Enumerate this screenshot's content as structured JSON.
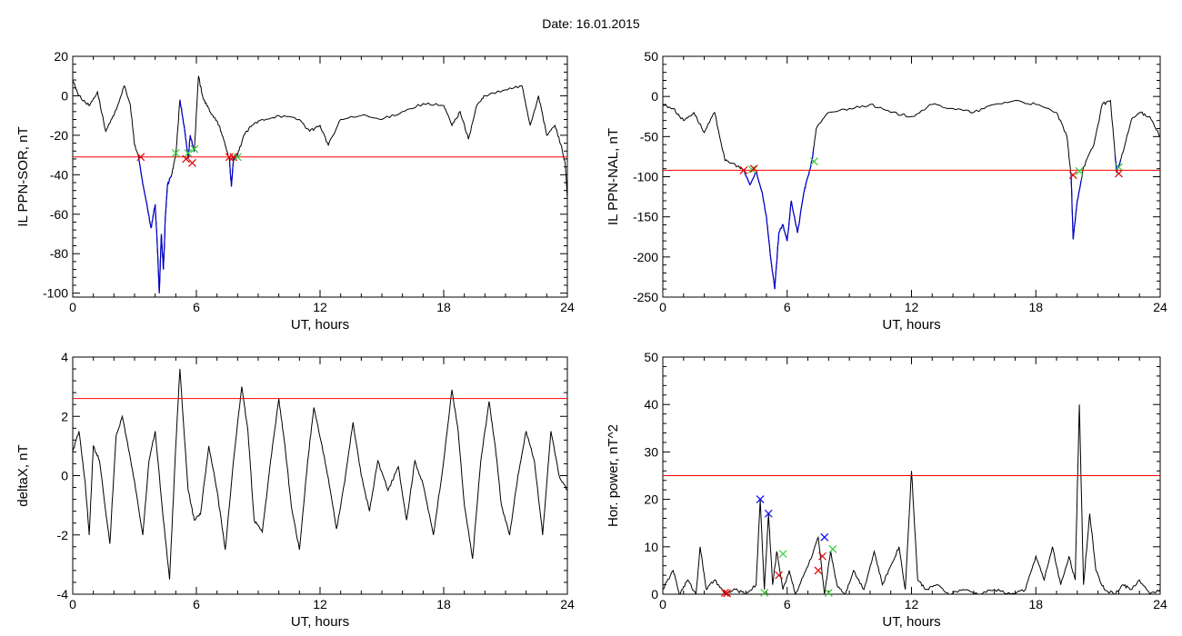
{
  "figure_title": "Date:  16.01.2015",
  "colors": {
    "line": "#000000",
    "threshold": "#ff0000",
    "highlight": "#0000cc",
    "green_marker": "#33cc33",
    "red_marker": "#dd0000",
    "blue_marker": "#0000ff"
  },
  "chart_data": [
    {
      "type": "line",
      "id": "sor",
      "ylabel": "IL PPN-SOR, nT",
      "xlabel": "UT, hours",
      "xlim": [
        0,
        24
      ],
      "ylim": [
        -102,
        20
      ],
      "xticks": [
        0,
        6,
        12,
        18,
        24
      ],
      "yticks": [
        20,
        0,
        -20,
        -40,
        -60,
        -80,
        -100
      ],
      "threshold": -31,
      "x": [
        0,
        0.3,
        0.8,
        1.2,
        1.6,
        2.0,
        2.5,
        2.8,
        3.0,
        3.2,
        3.4,
        3.6,
        3.8,
        4.0,
        4.1,
        4.2,
        4.3,
        4.4,
        4.5,
        4.6,
        4.8,
        5.0,
        5.2,
        5.4,
        5.6,
        5.7,
        5.9,
        6.1,
        6.3,
        6.5,
        6.8,
        7.1,
        7.4,
        7.6,
        7.7,
        7.8,
        8.0,
        8.3,
        8.7,
        9.2,
        10,
        11,
        11.5,
        12,
        12.4,
        13,
        14,
        15,
        16,
        17,
        18,
        18.4,
        18.8,
        19.2,
        19.6,
        20,
        21,
        21.8,
        22.2,
        22.6,
        23,
        23.4,
        23.7,
        23.9,
        24
      ],
      "y": [
        8,
        0,
        -5,
        2,
        -18,
        -10,
        5,
        -5,
        -25,
        -31,
        -45,
        -55,
        -67,
        -55,
        -75,
        -100,
        -70,
        -88,
        -60,
        -45,
        -40,
        -30,
        -2,
        -15,
        -32,
        -20,
        -28,
        10,
        0,
        -5,
        -10,
        -15,
        -25,
        -32,
        -46,
        -32,
        -30,
        -20,
        -15,
        -12,
        -10,
        -12,
        -18,
        -15,
        -25,
        -12,
        -10,
        -12,
        -8,
        -4,
        -5,
        -15,
        -8,
        -22,
        -5,
        0,
        3,
        5,
        -15,
        0,
        -20,
        -15,
        -25,
        -35,
        -52
      ],
      "highlight_ranges": [
        [
          3.2,
          4.8
        ],
        [
          5.2,
          5.9
        ],
        [
          7.6,
          8.0
        ]
      ],
      "markers": [
        {
          "x": 3.3,
          "y": -31,
          "color": "red"
        },
        {
          "x": 5.0,
          "y": -29,
          "color": "green"
        },
        {
          "x": 5.5,
          "y": -32,
          "color": "red"
        },
        {
          "x": 5.6,
          "y": -29,
          "color": "green"
        },
        {
          "x": 5.8,
          "y": -34,
          "color": "red"
        },
        {
          "x": 5.9,
          "y": -27,
          "color": "green"
        },
        {
          "x": 7.6,
          "y": -31,
          "color": "red"
        },
        {
          "x": 7.8,
          "y": -31,
          "color": "red"
        },
        {
          "x": 8.0,
          "y": -31,
          "color": "green"
        }
      ]
    },
    {
      "type": "line",
      "id": "nal",
      "ylabel": "IL PPN-NAL, nT",
      "xlabel": "UT, hours",
      "xlim": [
        0,
        24
      ],
      "ylim": [
        -250,
        50
      ],
      "xticks": [
        0,
        6,
        12,
        18,
        24
      ],
      "yticks": [
        50,
        0,
        -50,
        -100,
        -150,
        -200,
        -250
      ],
      "threshold": -92,
      "x": [
        0,
        0.5,
        1.0,
        1.5,
        2.0,
        2.5,
        3.0,
        3.5,
        3.9,
        4.2,
        4.5,
        4.8,
        5.0,
        5.2,
        5.4,
        5.6,
        5.8,
        6.0,
        6.2,
        6.5,
        6.8,
        7.0,
        7.2,
        7.4,
        8.0,
        9.0,
        10,
        11,
        12,
        13,
        14,
        15,
        16,
        17,
        18,
        19,
        19.5,
        19.7,
        19.8,
        20.0,
        20.3,
        20.8,
        21.2,
        21.6,
        21.9,
        22.2,
        22.6,
        23,
        23.5,
        24
      ],
      "y": [
        -10,
        -15,
        -30,
        -20,
        -45,
        -20,
        -80,
        -85,
        -92,
        -110,
        -95,
        -120,
        -150,
        -200,
        -240,
        -170,
        -160,
        -180,
        -130,
        -170,
        -120,
        -100,
        -80,
        -40,
        -20,
        -15,
        -10,
        -20,
        -25,
        -10,
        -15,
        -20,
        -10,
        -5,
        -10,
        -20,
        -50,
        -98,
        -178,
        -130,
        -88,
        -60,
        -10,
        -5,
        -95,
        -70,
        -30,
        -20,
        -25,
        -50
      ],
      "highlight_ranges": [
        [
          3.9,
          7.3
        ],
        [
          19.7,
          20.2
        ],
        [
          21.8,
          22.1
        ]
      ],
      "markers": [
        {
          "x": 3.9,
          "y": -92,
          "color": "red"
        },
        {
          "x": 4.3,
          "y": -91,
          "color": "green"
        },
        {
          "x": 4.4,
          "y": -90,
          "color": "red"
        },
        {
          "x": 7.3,
          "y": -81,
          "color": "green"
        },
        {
          "x": 19.8,
          "y": -98,
          "color": "red"
        },
        {
          "x": 20.1,
          "y": -93,
          "color": "green"
        },
        {
          "x": 22.0,
          "y": -88,
          "color": "green"
        },
        {
          "x": 22.0,
          "y": -96,
          "color": "red"
        }
      ]
    },
    {
      "type": "line",
      "id": "deltax",
      "ylabel": "deltaX, nT",
      "xlabel": "UT, hours",
      "xlim": [
        0,
        24
      ],
      "ylim": [
        -4,
        4
      ],
      "xticks": [
        0,
        6,
        12,
        18,
        24
      ],
      "yticks": [
        4,
        2,
        0,
        -2,
        -4
      ],
      "threshold": 2.6,
      "x": [
        0,
        0.3,
        0.6,
        0.8,
        1.0,
        1.3,
        1.8,
        2.1,
        2.4,
        2.6,
        3.0,
        3.4,
        3.7,
        4.0,
        4.4,
        4.7,
        5.0,
        5.2,
        5.4,
        5.6,
        5.9,
        6.2,
        6.6,
        7.0,
        7.4,
        7.8,
        8.2,
        8.5,
        8.8,
        9.2,
        9.6,
        10.0,
        10.3,
        10.6,
        11.0,
        11.4,
        11.7,
        12.1,
        12.5,
        12.8,
        13.2,
        13.6,
        14.0,
        14.4,
        14.8,
        15.3,
        15.8,
        16.2,
        16.6,
        17.0,
        17.5,
        18.0,
        18.4,
        18.7,
        19.0,
        19.4,
        19.8,
        20.2,
        20.5,
        20.8,
        21.2,
        21.6,
        22.0,
        22.4,
        22.8,
        23.2,
        23.6,
        24
      ],
      "y": [
        0.8,
        1.5,
        -0.2,
        -2.0,
        1.0,
        0.5,
        -2.3,
        1.3,
        2.0,
        1.3,
        -0.2,
        -2.0,
        0.5,
        1.5,
        -1.5,
        -3.5,
        1.0,
        3.6,
        1.5,
        -0.5,
        -1.5,
        -1.3,
        1.0,
        -0.5,
        -2.5,
        0.5,
        3.0,
        1.5,
        -1.5,
        -1.9,
        0.5,
        2.6,
        1.0,
        -1.0,
        -2.5,
        0.5,
        2.3,
        1.0,
        -0.5,
        -1.8,
        -0.2,
        1.8,
        0.0,
        -1.2,
        0.5,
        -0.5,
        0.3,
        -1.5,
        0.5,
        -0.3,
        -2.0,
        0.5,
        2.9,
        1.5,
        -1.0,
        -2.8,
        0.5,
        2.5,
        1.0,
        -1.0,
        -2.0,
        0.0,
        1.5,
        0.5,
        -2.0,
        1.5,
        0.0,
        -0.5
      ]
    },
    {
      "type": "line",
      "id": "power",
      "ylabel": "Hor. power, nT^2",
      "xlabel": "UT, hours",
      "xlim": [
        0,
        24
      ],
      "ylim": [
        0,
        50
      ],
      "xticks": [
        0,
        6,
        12,
        18,
        24
      ],
      "yticks": [
        0,
        10,
        20,
        30,
        40,
        50
      ],
      "threshold": 25,
      "x": [
        0,
        0.5,
        0.8,
        1.2,
        1.6,
        1.8,
        2.1,
        2.5,
        3.0,
        3.5,
        4.0,
        4.5,
        4.7,
        4.9,
        5.1,
        5.3,
        5.5,
        5.8,
        6.1,
        6.4,
        6.8,
        7.2,
        7.5,
        7.8,
        8.1,
        8.4,
        8.8,
        9.2,
        9.7,
        10.2,
        10.6,
        11.0,
        11.4,
        11.7,
        12.0,
        12.3,
        12.7,
        13.2,
        13.8,
        14.5,
        15.2,
        16.0,
        16.8,
        17.5,
        18.0,
        18.4,
        18.8,
        19.2,
        19.6,
        19.9,
        20.1,
        20.3,
        20.6,
        20.9,
        21.3,
        21.8,
        22.2,
        22.6,
        23.0,
        23.5,
        24
      ],
      "y": [
        1,
        5,
        0,
        3,
        0,
        10,
        1,
        3,
        0,
        1,
        0,
        2,
        20,
        1,
        17,
        2,
        9,
        1,
        5,
        0,
        4,
        8,
        12,
        0,
        9,
        2,
        0,
        5,
        1,
        9,
        2,
        6,
        10,
        1,
        26,
        3,
        1,
        2,
        0,
        1,
        0,
        1,
        0,
        1,
        8,
        3,
        10,
        2,
        8,
        3,
        40,
        2,
        17,
        5,
        1,
        0,
        2,
        1,
        3,
        0,
        1
      ],
      "markers": [
        {
          "x": 3.0,
          "y": 0.3,
          "color": "red"
        },
        {
          "x": 3.1,
          "y": 0.2,
          "color": "red"
        },
        {
          "x": 4.9,
          "y": 0.3,
          "color": "green"
        },
        {
          "x": 4.7,
          "y": 20,
          "color": "blue"
        },
        {
          "x": 5.1,
          "y": 17,
          "color": "blue"
        },
        {
          "x": 5.6,
          "y": 4,
          "color": "red"
        },
        {
          "x": 5.8,
          "y": 8.5,
          "color": "green"
        },
        {
          "x": 7.5,
          "y": 5,
          "color": "red"
        },
        {
          "x": 7.7,
          "y": 8,
          "color": "red"
        },
        {
          "x": 7.8,
          "y": 12,
          "color": "blue"
        },
        {
          "x": 8.2,
          "y": 9.5,
          "color": "green"
        },
        {
          "x": 8.0,
          "y": 0.3,
          "color": "green"
        }
      ]
    }
  ]
}
